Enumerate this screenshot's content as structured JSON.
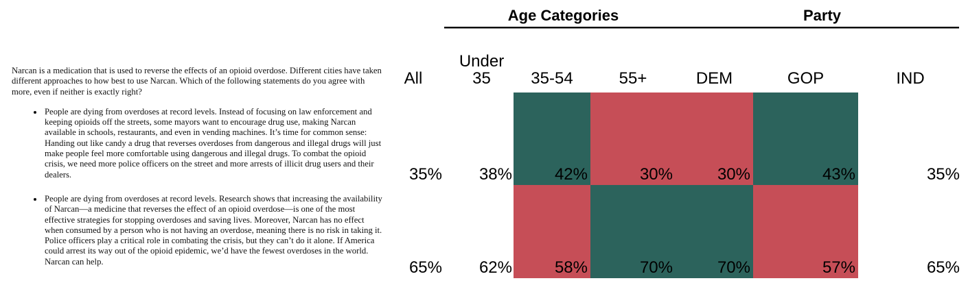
{
  "colors": {
    "teal": "#2C635C",
    "red": "#C64E57",
    "page_background": "#FFFFFF",
    "text": "#111111",
    "rule": "#000000"
  },
  "question": {
    "intro": "Narcan is a medication that is used to reverse the effects of an opioid overdose. Different cities have taken different approaches to how best to use Narcan. Which of the following statements do you agree with more, even if neither is exactly right?",
    "options": [
      "People are dying from overdoses at record levels. Instead of focusing on law enforcement and keeping opioids off the streets, some mayors want to encourage drug use, making Narcan available in schools, restaurants, and even in vending machines. It’s time for common sense: Handing out like candy a drug that reverses overdoses from dangerous and illegal drugs will just make people feel more comfortable using dangerous and illegal drugs. To combat the opioid crisis, we need more police officers on the street and more arrests of illicit drug users and their dealers.",
      "People are dying from overdoses at record levels. Research shows that increasing the availability of Narcan—a medicine that reverses the effect of an opioid overdose—is one of the most effective strategies for stopping overdoses and saving lives. Moreover, Narcan has no effect when consumed by a person who is not having an overdose, meaning there is no risk in taking it. Police officers play a critical role in combating the crisis, but they can’t do it alone. If America could arrest its way out of the opioid epidemic, we’d have the fewest overdoses in the world. Narcan can help."
    ]
  },
  "table": {
    "group_headers": [
      {
        "label": "Age Categories"
      },
      {
        "label": "Party"
      }
    ],
    "columns": [
      {
        "label": "All"
      },
      {
        "label": "Under 35"
      },
      {
        "label": "35-54"
      },
      {
        "label": "55+"
      },
      {
        "label": "DEM"
      },
      {
        "label": "GOP"
      },
      {
        "label": "IND"
      }
    ],
    "rows": [
      {
        "values": [
          "35%",
          "38%",
          "42%",
          "30%",
          "30%",
          "43%",
          "35%"
        ],
        "cell_colors": [
          null,
          null,
          "teal",
          "red",
          "red",
          "teal",
          null
        ],
        "cell_fills": [
          null,
          null,
          "#2C635C",
          "#C64E57",
          "#C64E57",
          "#2C635C",
          null
        ]
      },
      {
        "values": [
          "65%",
          "62%",
          "58%",
          "70%",
          "70%",
          "57%",
          "65%"
        ],
        "cell_colors": [
          null,
          null,
          "red",
          "teal",
          "teal",
          "red",
          null
        ],
        "cell_fills": [
          null,
          null,
          "#C64E57",
          "#2C635C",
          "#2C635C",
          "#C64E57",
          null
        ]
      }
    ]
  },
  "chart_data": {
    "type": "heatmap",
    "title": "",
    "columns": [
      "All",
      "Under 35",
      "35-54",
      "55+",
      "DEM",
      "GOP",
      "IND"
    ],
    "column_groups": [
      {
        "label": "Age Categories",
        "columns": [
          "Under 35",
          "35-54",
          "55+"
        ]
      },
      {
        "label": "Party",
        "columns": [
          "DEM",
          "GOP",
          "IND"
        ]
      }
    ],
    "series": [
      {
        "name": "statement_1_police_enforcement",
        "values": [
          35,
          38,
          42,
          30,
          30,
          43,
          35
        ]
      },
      {
        "name": "statement_2_narcan_availability",
        "values": [
          65,
          62,
          58,
          70,
          70,
          57,
          65
        ]
      }
    ],
    "value_unit": "%",
    "highlight_colors": {
      "above_all": "#2C635C",
      "below_all": "#C64E57"
    },
    "legend": "none",
    "grid": false
  }
}
